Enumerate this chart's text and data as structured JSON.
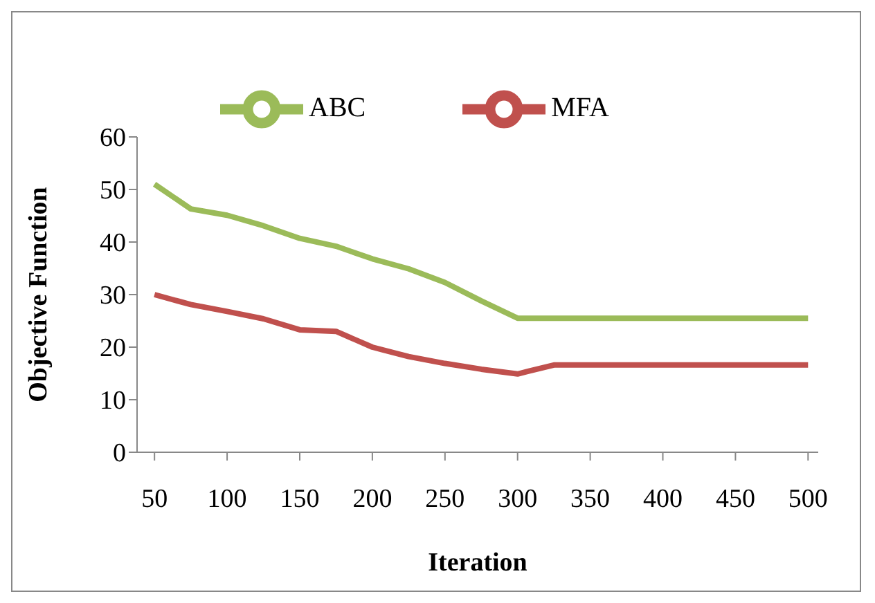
{
  "chart_data": {
    "type": "line",
    "xlabel": "Iteration",
    "ylabel": "Objective Function",
    "x": [
      50,
      75,
      100,
      125,
      150,
      175,
      200,
      225,
      250,
      275,
      300,
      325,
      350,
      375,
      400,
      425,
      450,
      475,
      500
    ],
    "series": [
      {
        "name": "MFA",
        "color": "#c0504d",
        "values": [
          30.0,
          28.1,
          26.8,
          25.4,
          23.3,
          23.0,
          20.0,
          18.2,
          16.9,
          15.8,
          14.9,
          16.6,
          16.6,
          16.6,
          16.6,
          16.6,
          16.6,
          16.6,
          16.6
        ]
      },
      {
        "name": "ABC",
        "color": "#9bbb59",
        "values": [
          51.0,
          46.3,
          45.1,
          43.1,
          40.7,
          39.2,
          36.8,
          34.9,
          32.3,
          28.8,
          25.5,
          25.5,
          25.5,
          25.5,
          25.5,
          25.5,
          25.5,
          25.5,
          25.5
        ]
      }
    ],
    "xlim": [
      38,
      507
    ],
    "xticks": [
      50,
      100,
      150,
      200,
      250,
      300,
      350,
      400,
      450,
      500
    ],
    "ylim": [
      0,
      60
    ],
    "yticks": [
      0,
      10,
      20,
      30,
      40,
      50,
      60
    ],
    "grid": false,
    "legend": "top",
    "marker": "none",
    "line_style": "solid"
  }
}
